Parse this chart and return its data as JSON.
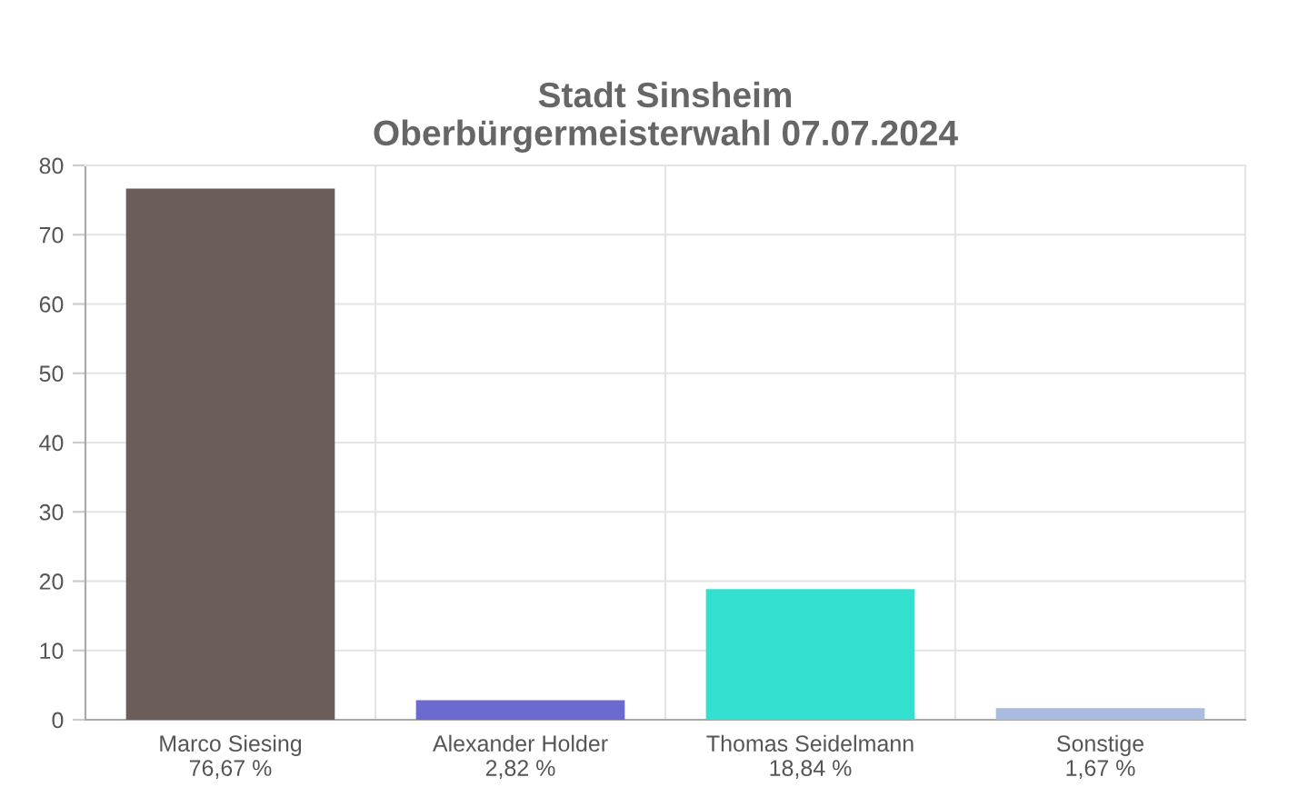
{
  "chart_data": {
    "type": "bar",
    "title": "Stadt Sinsheim\nOberbürgermeisterwahl 07.07.2024",
    "categories": [
      "Marco Siesing",
      "Alexander Holder",
      "Thomas Seidelmann",
      "Sonstige"
    ],
    "values": [
      76.67,
      2.82,
      18.84,
      1.67
    ],
    "value_labels": [
      "76,67 %",
      "2,82 %",
      "18,84 %",
      "1,67 %"
    ],
    "colors": [
      "#6b5e5a",
      "#6b6bcf",
      "#33e0d0",
      "#a9bcdf"
    ],
    "ylim": [
      0,
      80
    ],
    "yticks": [
      0,
      10,
      20,
      30,
      40,
      50,
      60,
      70,
      80
    ],
    "grid": true
  }
}
